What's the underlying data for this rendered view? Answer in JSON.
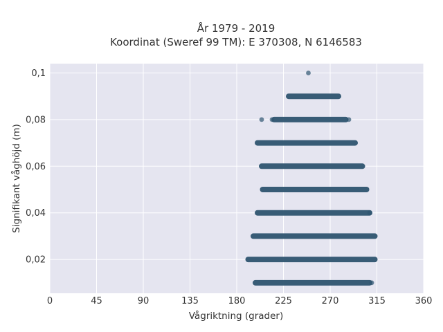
{
  "chart_data": {
    "type": "scatter",
    "title": "År 1979 - 2019",
    "subtitle": "Koordinat (Sweref 99 TM): E 370308, N 6146583",
    "xlabel": "Vågriktning (grader)",
    "ylabel": "Signifikant våghöjd (m)",
    "xlim": [
      0,
      360
    ],
    "ylim": [
      0.0055,
      0.104
    ],
    "grid": true,
    "x_ticks": [
      0,
      45,
      90,
      135,
      180,
      225,
      270,
      315,
      360
    ],
    "x_tick_labels": [
      "0",
      "45",
      "90",
      "135",
      "180",
      "225",
      "270",
      "315",
      "360"
    ],
    "y_ticks": [
      0.02,
      0.04,
      0.06,
      0.08,
      0.1
    ],
    "y_tick_labels": [
      "0,02",
      "0,04",
      "0,06",
      "0,08",
      "0,1"
    ],
    "marker_color": "#2f5570",
    "background_color": "#e5e5f0",
    "bands": [
      {
        "y": 0.01,
        "x_min": 198,
        "x_max": 308
      },
      {
        "y": 0.02,
        "x_min": 191,
        "x_max": 313
      },
      {
        "y": 0.03,
        "x_min": 196,
        "x_max": 313
      },
      {
        "y": 0.04,
        "x_min": 200,
        "x_max": 308
      },
      {
        "y": 0.05,
        "x_min": 205,
        "x_max": 305
      },
      {
        "y": 0.06,
        "x_min": 204,
        "x_max": 301
      },
      {
        "y": 0.07,
        "x_min": 200,
        "x_max": 294
      },
      {
        "y": 0.08,
        "x_min": 216,
        "x_max": 285
      },
      {
        "y": 0.09,
        "x_min": 230,
        "x_max": 278
      }
    ],
    "points": [
      {
        "x": 310,
        "y": 0.01
      },
      {
        "x": 308,
        "y": 0.04
      },
      {
        "x": 204,
        "y": 0.08
      },
      {
        "x": 214,
        "y": 0.08
      },
      {
        "x": 288,
        "y": 0.08
      },
      {
        "x": 249,
        "y": 0.1
      }
    ]
  }
}
